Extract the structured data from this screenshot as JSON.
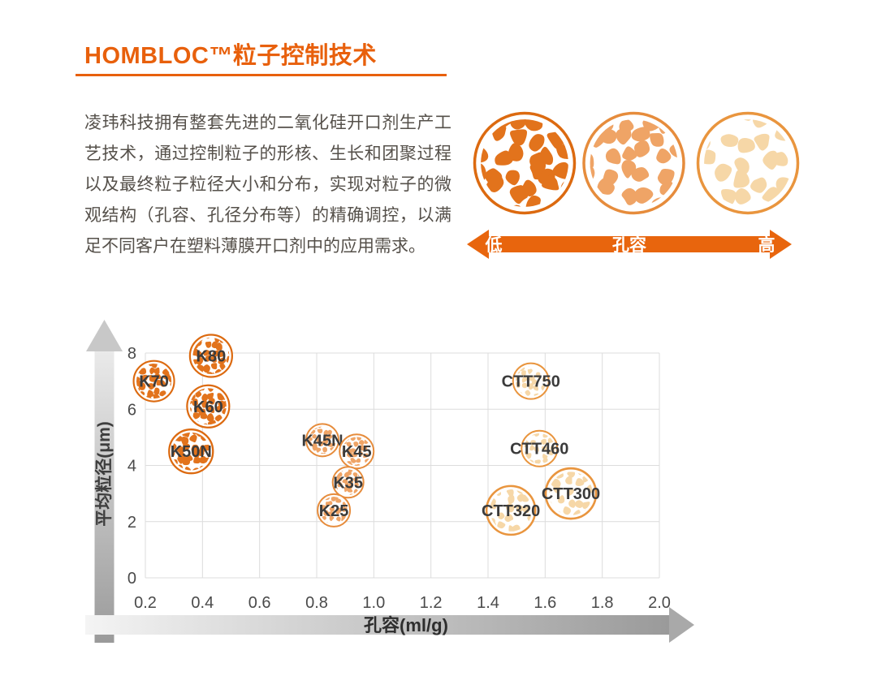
{
  "header": {
    "title": "HOMBLOC™粒子控制技术"
  },
  "intro": {
    "text": "凌玮科技拥有整套先进的二氧化硅开口剂生产工艺技术，通过控制粒子的形核、生长和团聚过程以及最终粒子粒径大小和分布，实现对粒子的微观结构（孔容、孔径分布等）的精确调控，以满足不同客户在塑料薄膜开口剂中的应用需求。"
  },
  "pore_graphic": {
    "arrow_left_label": "低",
    "arrow_center_label": "孔容",
    "arrow_right_label": "高",
    "arrow_color": "#E8650D",
    "circles": [
      {
        "style": "dense"
      },
      {
        "style": "medium"
      },
      {
        "style": "light"
      }
    ]
  },
  "chart_data": {
    "type": "scatter",
    "xlabel": "孔容(ml/g)",
    "ylabel": "平均粒径(μm)",
    "xlim": [
      0.2,
      2.0
    ],
    "ylim": [
      0,
      8
    ],
    "x_ticks": [
      0.2,
      0.4,
      0.6,
      0.8,
      1.0,
      1.2,
      1.4,
      1.6,
      1.8,
      2.0
    ],
    "y_ticks": [
      0,
      2,
      4,
      6,
      8
    ],
    "grid": true,
    "legend": "none",
    "points": [
      {
        "name": "K70",
        "x": 0.23,
        "y": 7.0,
        "r": 25,
        "style": "dense"
      },
      {
        "name": "K80",
        "x": 0.43,
        "y": 7.9,
        "r": 26,
        "style": "dense"
      },
      {
        "name": "K60",
        "x": 0.42,
        "y": 6.1,
        "r": 26,
        "style": "dense"
      },
      {
        "name": "K50N",
        "x": 0.36,
        "y": 4.5,
        "r": 27,
        "style": "dense"
      },
      {
        "name": "K45N",
        "x": 0.82,
        "y": 4.9,
        "r": 20,
        "style": "medium"
      },
      {
        "name": "K45",
        "x": 0.94,
        "y": 4.5,
        "r": 21,
        "style": "medium"
      },
      {
        "name": "K35",
        "x": 0.91,
        "y": 3.4,
        "r": 19,
        "style": "medium"
      },
      {
        "name": "K25",
        "x": 0.86,
        "y": 2.4,
        "r": 20,
        "style": "medium"
      },
      {
        "name": "CTT750",
        "x": 1.55,
        "y": 7.0,
        "r": 22,
        "style": "light"
      },
      {
        "name": "CTT460",
        "x": 1.58,
        "y": 4.6,
        "r": 22,
        "style": "light"
      },
      {
        "name": "CTT300",
        "x": 1.69,
        "y": 3.0,
        "r": 31,
        "style": "light"
      },
      {
        "name": "CTT320",
        "x": 1.48,
        "y": 2.4,
        "r": 30,
        "style": "light"
      }
    ],
    "texture_styles": {
      "dense": {
        "fill": "#E2731C",
        "ring": "#DC6A10"
      },
      "medium": {
        "fill": "#EFA466",
        "ring": "#E68C3C"
      },
      "light": {
        "fill": "#F6D7A7",
        "ring": "#E9953E"
      }
    }
  },
  "colors": {
    "accent": "#E8600C",
    "body_text": "#55504A",
    "text_dark": "#3B3B3B",
    "tick_text": "#4A4A4A",
    "grid_line": "#DCDCDC",
    "axis_gray_dark": "#9A9A9A",
    "axis_gray_light": "#F2F2F2"
  }
}
